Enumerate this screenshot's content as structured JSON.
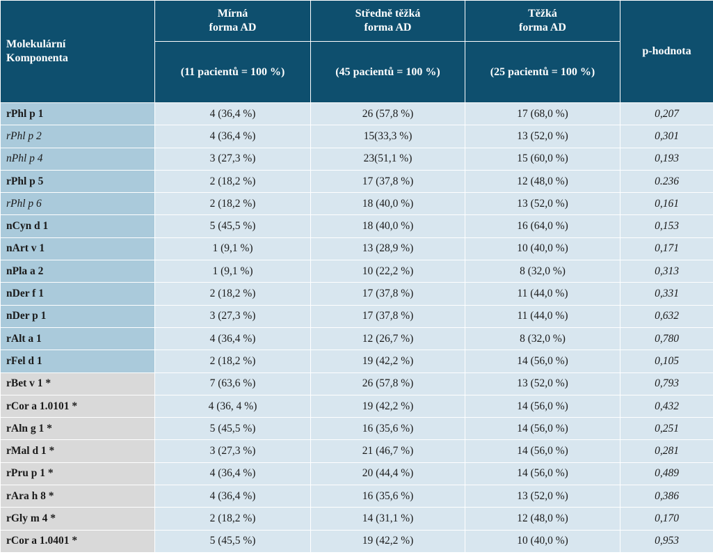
{
  "header": {
    "component_col": [
      "Molekulární",
      "Komponenta"
    ],
    "groups": [
      {
        "line1": "Mírná",
        "line2": "forma AD",
        "count": "(11 pacientů = 100 %)"
      },
      {
        "line1": "Středně těžká",
        "line2": "forma AD",
        "count": "(45 pacientů = 100 %)"
      },
      {
        "line1": "Těžká",
        "line2": "forma AD",
        "count": "(25 pacientů = 100 %)"
      }
    ],
    "p_col": "p-hodnota"
  },
  "rows": [
    {
      "name": "rPhl p 1",
      "mild": "4 (36,4 %)",
      "moderate": "26 (57,8 %)",
      "severe": "17 (68,0 %)",
      "p": "0,207"
    },
    {
      "name": "rPhl p 2",
      "mild": "4 (36,4 %)",
      "moderate": "15(33,3 %)",
      "severe": "13 (52,0 %)",
      "p": "0,301"
    },
    {
      "name": "nPhl p 4",
      "mild": "3 (27,3 %)",
      "moderate": "23(51,1 %)",
      "severe": "15 (60,0 %)",
      "p": "0,193"
    },
    {
      "name": "rPhl p 5",
      "mild": "2 (18,2 %)",
      "moderate": "17 (37,8 %)",
      "severe": "12 (48,0 %)",
      "p": "0.236"
    },
    {
      "name": "rPhl p 6",
      "mild": "2 (18,2 %)",
      "moderate": "18 (40,0 %)",
      "severe": "13 (52,0 %)",
      "p": "0,161"
    },
    {
      "name": "nCyn d 1",
      "mild": "5 (45,5 %)",
      "moderate": "18 (40,0 %)",
      "severe": "16 (64,0 %)",
      "p": "0,153"
    },
    {
      "name": "nArt v 1",
      "mild": "1 (9,1 %)",
      "moderate": "13 (28,9 %)",
      "severe": "10 (40,0 %)",
      "p": "0,171"
    },
    {
      "name": "nPla a 2",
      "mild": "1 (9,1 %)",
      "moderate": "10 (22,2 %)",
      "severe": "8 (32,0 %)",
      "p": "0,313"
    },
    {
      "name": "nDer f 1",
      "mild": "2 (18,2 %)",
      "moderate": "17 (37,8 %)",
      "severe": "11 (44,0 %)",
      "p": "0,331"
    },
    {
      "name": "nDer p 1",
      "mild": "3 (27,3 %)",
      "moderate": "17 (37,8 %)",
      "severe": "11 (44,0 %)",
      "p": "0,632"
    },
    {
      "name": "rAlt a 1",
      "mild": "4 (36,4 %)",
      "moderate": "12 (26,7 %)",
      "severe": "8 (32,0 %)",
      "p": "0,780"
    },
    {
      "name": "rFel d 1",
      "mild": "2 (18,2 %)",
      "moderate": "19 (42,2 %)",
      "severe": "14 (56,0 %)",
      "p": "0,105"
    },
    {
      "name": "rBet v 1 *",
      "mild": "7 (63,6 %)",
      "moderate": "26 (57,8 %)",
      "severe": "13 (52,0 %)",
      "p": "0,793"
    },
    {
      "name": "rCor a 1.0101 *",
      "mild": "4 (36, 4 %)",
      "moderate": "19 (42,2 %)",
      "severe": "14 (56,0 %)",
      "p": "0,432"
    },
    {
      "name": "rAln g 1 *",
      "mild": "5 (45,5 %)",
      "moderate": "16 (35,6 %)",
      "severe": "14 (56,0 %)",
      "p": "0,251"
    },
    {
      "name": "rMal d 1 *",
      "mild": "3 (27,3 %)",
      "moderate": "21 (46,7 %)",
      "severe": "14 (56,0 %)",
      "p": "0,281"
    },
    {
      "name": "rPru p 1 *",
      "mild": "4 (36,4 %)",
      "moderate": "20 (44,4 %)",
      "severe": "14 (56,0 %)",
      "p": "0,489"
    },
    {
      "name": "rAra h 8 *",
      "mild": "4 (36,4 %)",
      "moderate": "16 (35,6 %)",
      "severe": "13 (52,0 %)",
      "p": "0,386"
    },
    {
      "name": "rGly m 4 *",
      "mild": "2 (18,2 %)",
      "moderate": "14 (31,1 %)",
      "severe": "12 (48,0 %)",
      "p": "0,170"
    },
    {
      "name": "rCor a 1.0401 *",
      "mild": "5 (45,5 %)",
      "moderate": "19 (42,2 %)",
      "severe": "10 (40,0 %)",
      "p": "0,953"
    }
  ],
  "colors": {
    "header_bg": "#0e4f6e",
    "name_blue": "#aacadb",
    "name_gray": "#d9d9d9",
    "cell_bg": "#d8e6ef"
  }
}
